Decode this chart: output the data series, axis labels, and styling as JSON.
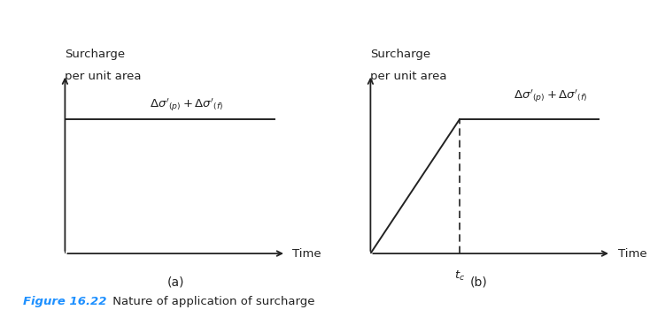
{
  "bg_color": "#ffffff",
  "fig_width": 7.34,
  "fig_height": 3.68,
  "panel_a": {
    "ylabel_line1": "Surcharge",
    "ylabel_line2": "per unit area",
    "xlabel": "Time",
    "label": "(a)",
    "annotation": "$\\Delta\\sigma'_{(p)} + \\Delta\\sigma'_{(f)}$"
  },
  "panel_b": {
    "ylabel_line1": "Surcharge",
    "ylabel_line2": "per unit area",
    "xlabel": "Time",
    "label": "(b)",
    "tc_label": "$t_c$",
    "annotation": "$\\Delta\\sigma'_{(p)} + \\Delta\\sigma'_{(f)}$"
  },
  "figure_caption_bold": "Figure 16.22",
  "figure_caption_rest": " Nature of application of surcharge",
  "caption_color_bold": "#1E90FF",
  "caption_color_rest": "#222222",
  "axis_color": "#222222",
  "line_color": "#222222",
  "dashed_color": "#222222"
}
